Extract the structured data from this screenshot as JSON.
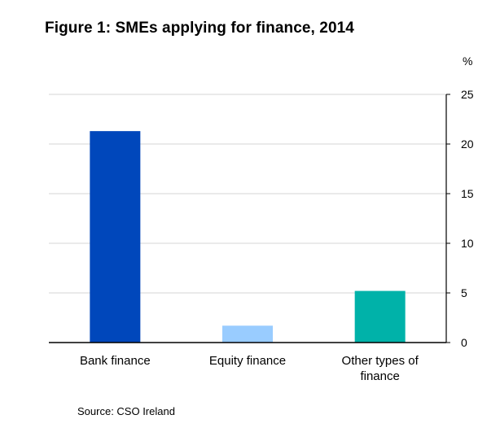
{
  "title": "Figure 1:  SMEs  applying for finance, 2014",
  "source": "Source: CSO Ireland",
  "chart_data": {
    "type": "bar",
    "categories": [
      [
        "Bank finance"
      ],
      [
        "Equity finance"
      ],
      [
        "Other types of",
        "finance"
      ]
    ],
    "values": [
      21.3,
      1.7,
      5.2
    ],
    "colors": [
      "#0047bb",
      "#99ccff",
      "#00b2a9"
    ],
    "ylabel": "%",
    "ylim": [
      0,
      25
    ],
    "yticks": [
      0,
      5,
      10,
      15,
      20,
      25
    ],
    "y_axis_side": "right",
    "grid": true,
    "legend": false
  }
}
